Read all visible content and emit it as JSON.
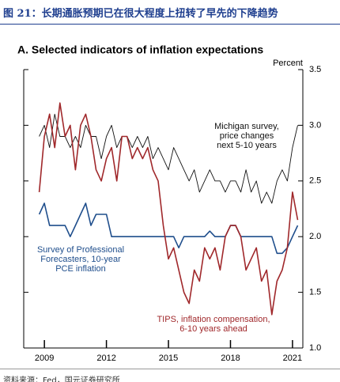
{
  "header": {
    "title": "图 21：长期通胀预期已在很大程度上扭转了早先的下降趋势"
  },
  "footer": {
    "source": "资料来源：Fed，国元证券研究所"
  },
  "chart_data": {
    "type": "line",
    "title": "A. Selected indicators of inflation expectations",
    "y_axis_label": "Percent",
    "x": [
      2008.75,
      2009,
      2009.25,
      2009.5,
      2009.75,
      2010,
      2010.25,
      2010.5,
      2010.75,
      2011,
      2011.25,
      2011.5,
      2011.75,
      2012,
      2012.25,
      2012.5,
      2012.75,
      2013,
      2013.25,
      2013.5,
      2013.75,
      2014,
      2014.25,
      2014.5,
      2014.75,
      2015,
      2015.25,
      2015.5,
      2015.75,
      2016,
      2016.25,
      2016.5,
      2016.75,
      2017,
      2017.25,
      2017.5,
      2017.75,
      2018,
      2018.25,
      2018.5,
      2018.75,
      2019,
      2019.25,
      2019.5,
      2019.75,
      2020,
      2020.25,
      2020.5,
      2020.75,
      2021,
      2021.25
    ],
    "series": [
      {
        "label": [
          "Michigan survey,",
          "price changes",
          "next 5-10 years"
        ],
        "color": "#111111",
        "values": [
          2.9,
          3.0,
          2.8,
          3.1,
          2.9,
          2.9,
          2.8,
          2.9,
          2.8,
          3.0,
          2.9,
          2.9,
          2.7,
          2.9,
          3.0,
          2.8,
          2.9,
          2.9,
          2.8,
          2.9,
          2.8,
          2.9,
          2.7,
          2.8,
          2.7,
          2.6,
          2.8,
          2.7,
          2.6,
          2.5,
          2.6,
          2.4,
          2.5,
          2.6,
          2.5,
          2.5,
          2.4,
          2.5,
          2.5,
          2.4,
          2.6,
          2.4,
          2.5,
          2.3,
          2.4,
          2.3,
          2.5,
          2.6,
          2.5,
          2.8,
          3.0
        ]
      },
      {
        "label": [
          "Survey of Professional",
          "Forecasters, 10-year",
          "PCE inflation"
        ],
        "color": "#1f4e8c",
        "values": [
          2.2,
          2.3,
          2.1,
          2.1,
          2.1,
          2.1,
          2.0,
          2.1,
          2.2,
          2.3,
          2.1,
          2.2,
          2.2,
          2.2,
          2.0,
          2.0,
          2.0,
          2.0,
          2.0,
          2.0,
          2.0,
          2.0,
          2.0,
          2.0,
          2.0,
          2.0,
          2.0,
          1.9,
          2.0,
          2.0,
          2.0,
          2.0,
          2.0,
          2.05,
          2.0,
          2.0,
          2.0,
          2.1,
          2.1,
          2.0,
          2.0,
          2.0,
          2.0,
          2.0,
          2.0,
          2.0,
          1.85,
          1.85,
          1.9,
          2.0,
          2.1
        ]
      },
      {
        "label": [
          "TIPS, inflation compensation,",
          "6-10 years ahead"
        ],
        "color": "#a0282b",
        "values": [
          2.4,
          2.9,
          3.1,
          2.8,
          3.2,
          2.9,
          3.0,
          2.6,
          3.0,
          3.1,
          2.9,
          2.6,
          2.5,
          2.7,
          2.8,
          2.5,
          2.9,
          2.9,
          2.7,
          2.8,
          2.7,
          2.8,
          2.6,
          2.5,
          2.1,
          1.8,
          1.9,
          1.7,
          1.5,
          1.4,
          1.7,
          1.6,
          1.9,
          1.8,
          1.9,
          1.7,
          2.0,
          2.1,
          2.1,
          2.0,
          1.7,
          1.8,
          1.9,
          1.6,
          1.7,
          1.3,
          1.6,
          1.7,
          1.9,
          2.4,
          2.15
        ]
      }
    ],
    "xlim": [
      2008,
      2021.5
    ],
    "xticks": [
      2009,
      2012,
      2015,
      2018,
      2021
    ],
    "ylim": [
      1.0,
      3.5
    ],
    "yticks": [
      {
        "value": 1.0,
        "label": "1.0"
      },
      1.5,
      {
        "value": 2.0,
        "label": "2.0"
      },
      2.5,
      {
        "value": 3.0,
        "label": "3.0"
      },
      3.5
    ]
  }
}
